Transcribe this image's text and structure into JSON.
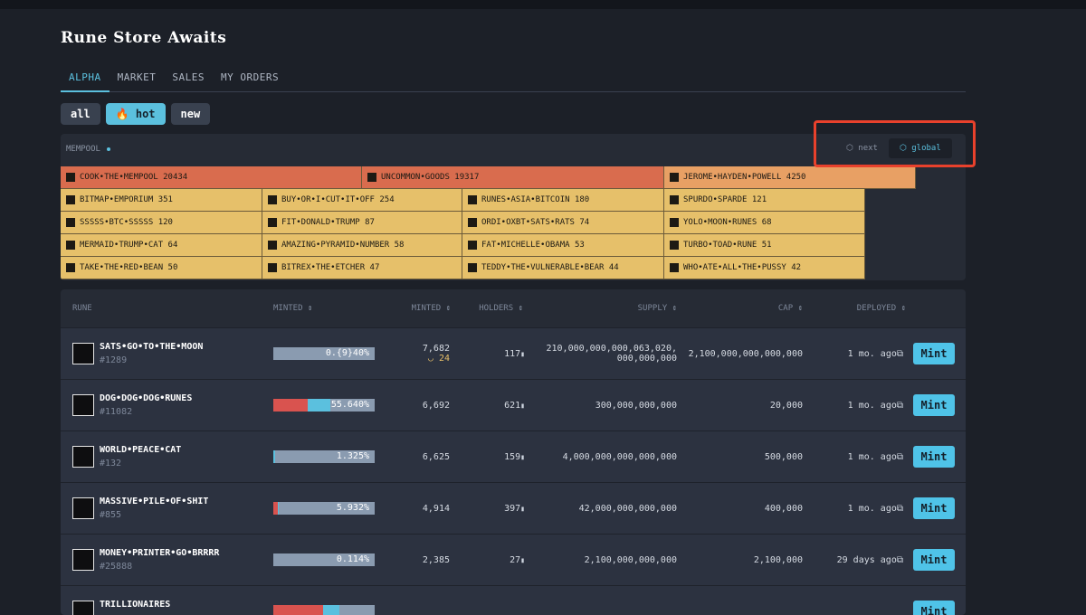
{
  "header": {
    "title": "Rune Store Awaits"
  },
  "tabs": [
    "ALPHA",
    "MARKET",
    "SALES",
    "MY ORDERS"
  ],
  "filters": [
    "all",
    "🔥 hot",
    "new"
  ],
  "mempool": {
    "label": "MEMPOOL",
    "views": [
      "next",
      "global"
    ],
    "tiles": [
      [
        {
          "name": "COOK•THE•MEMPOOL",
          "count": 20434
        },
        {
          "name": "UNCOMMON•GOODS",
          "count": 19317
        },
        {
          "name": "JEROME•HAYDEN•POWELL",
          "count": 4250
        }
      ],
      [
        {
          "name": "BITMAP•EMPORIUM",
          "count": 351
        },
        {
          "name": "BUY•OR•I•CUT•IT•OFF",
          "count": 254
        },
        {
          "name": "RUNES•ASIA•BITCOIN",
          "count": 180
        },
        {
          "name": "SPURDO•SPARDE",
          "count": 121
        }
      ],
      [
        {
          "name": "SSSSS•BTC•SSSSS",
          "count": 120
        },
        {
          "name": "FIT•DONALD•TRUMP",
          "count": 87
        },
        {
          "name": "ORDI•OXBT•SATS•RATS",
          "count": 74
        },
        {
          "name": "YOLO•MOON•RUNES",
          "count": 68
        }
      ],
      [
        {
          "name": "MERMAID•TRUMP•CAT",
          "count": 64
        },
        {
          "name": "AMAZING•PYRAMID•NUMBER",
          "count": 58
        },
        {
          "name": "FAT•MICHELLE•OBAMA",
          "count": 53
        },
        {
          "name": "TURBO•TOAD•RUNE",
          "count": 51
        }
      ],
      [
        {
          "name": "TAKE•THE•RED•BEAN",
          "count": 50
        },
        {
          "name": "BITREX•THE•ETCHER",
          "count": 47
        },
        {
          "name": "TEDDY•THE•VULNERABLE•BEAR",
          "count": 44
        },
        {
          "name": "WHO•ATE•ALL•THE•PUSSY",
          "count": 42
        }
      ]
    ]
  },
  "table": {
    "columns": [
      "RUNE",
      "MINTED",
      "MINTED",
      "HOLDERS",
      "SUPPLY",
      "CAP",
      "DEPLOYED"
    ],
    "rows": [
      {
        "name": "SATS•GO•TO•THE•MOON",
        "id": "#1289",
        "progress": "0.{9}40%",
        "minted": "7,682",
        "minted_sub": "24",
        "holders": "117",
        "supply": "210,000,000,000,063,020,000,000,000",
        "cap": "2,100,000,000,000,000",
        "deployed": "1 mo. ago",
        "action": "Mint"
      },
      {
        "name": "DOG•DOG•DOG•RUNES",
        "id": "#11082",
        "progress": "55.640%",
        "minted": "6,692",
        "holders": "621",
        "supply": "300,000,000,000",
        "cap": "20,000",
        "deployed": "1 mo. ago",
        "action": "Mint"
      },
      {
        "name": "WORLD•PEACE•CAT",
        "id": "#132",
        "progress": "1.325%",
        "minted": "6,625",
        "holders": "159",
        "supply": "4,000,000,000,000,000",
        "cap": "500,000",
        "deployed": "1 mo. ago",
        "action": "Mint"
      },
      {
        "name": "MASSIVE•PILE•OF•SHIT",
        "id": "#855",
        "progress": "5.932%",
        "minted": "4,914",
        "holders": "397",
        "supply": "42,000,000,000,000",
        "cap": "400,000",
        "deployed": "1 mo. ago",
        "action": "Mint"
      },
      {
        "name": "MONEY•PRINTER•GO•BRRRR",
        "id": "#25888",
        "progress": "0.114%",
        "minted": "2,385",
        "holders": "27",
        "supply": "2,100,000,000,000",
        "cap": "2,100,000",
        "deployed": "29 days ago",
        "action": "Mint"
      },
      {
        "name": "TRILLIONAIRES",
        "action": "Mint"
      }
    ]
  }
}
